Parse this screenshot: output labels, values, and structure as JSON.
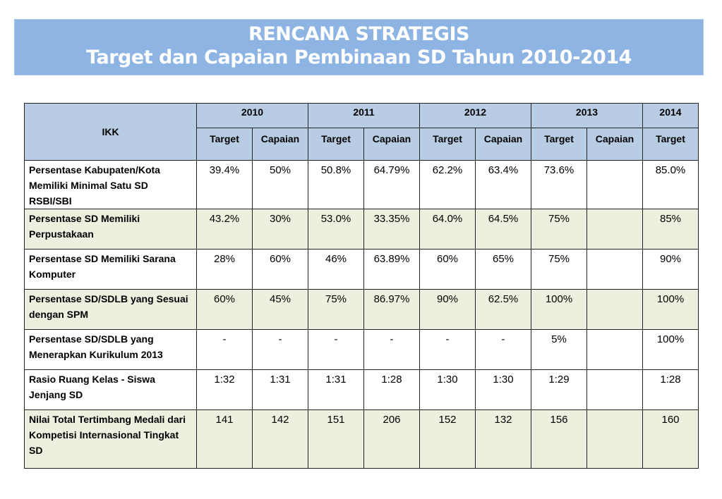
{
  "banner": {
    "title": "RENCANA STRATEGIS",
    "subtitle": "Target dan Capaian Pembinaan SD Tahun 2010-2014"
  },
  "table": {
    "ikk_header": "IKK",
    "years": [
      "2010",
      "2011",
      "2012",
      "2013",
      "2014"
    ],
    "sub_headers": [
      "Target",
      "Capaian",
      "Target",
      "Capaian",
      "Target",
      "Capaian",
      "Target",
      "Capaian",
      "Target"
    ],
    "rows": [
      {
        "label": "Persentase Kabupaten/Kota Memiliki Minimal Satu SD RSBI/SBI",
        "values": [
          "39.4%",
          "50%",
          "50.8%",
          "64.79%",
          "62.2%",
          "63.4%",
          "73.6%",
          "",
          "85.0%"
        ]
      },
      {
        "label": "Persentase SD Memiliki Perpustakaan",
        "values": [
          "43.2%",
          "30%",
          "53.0%",
          "33.35%",
          "64.0%",
          "64.5%",
          "75%",
          "",
          "85%"
        ]
      },
      {
        "label": "Persentase SD Memiliki Sarana Komputer",
        "values": [
          "28%",
          "60%",
          "46%",
          "63.89%",
          "60%",
          "65%",
          "75%",
          "",
          "90%"
        ]
      },
      {
        "label": "Persentase SD/SDLB yang Sesuai dengan SPM",
        "values": [
          "60%",
          "45%",
          "75%",
          "86.97%",
          "90%",
          "62.5%",
          "100%",
          "",
          "100%"
        ]
      },
      {
        "label": "Persentase SD/SDLB yang Menerapkan Kurikulum 2013",
        "values": [
          "-",
          "-",
          "-",
          "-",
          "-",
          "-",
          "5%",
          "",
          "100%"
        ]
      },
      {
        "label": "Rasio Ruang Kelas - Siswa Jenjang SD",
        "values": [
          "1:32",
          "1:31",
          "1:31",
          "1:28",
          "1:30",
          "1:30",
          "1:29",
          "",
          "1:28"
        ]
      },
      {
        "label": "Nilai Total Tertimbang Medali dari Kompetisi Internasional Tingkat SD",
        "values": [
          "141",
          "142",
          "151",
          "206",
          "152",
          "132",
          "156",
          "",
          "160"
        ]
      }
    ]
  },
  "colors": {
    "banner_bg": "#8db4e2",
    "header_bg": "#b8cce4",
    "row_green": "#ebf1de",
    "row_white": "#ffffff"
  }
}
